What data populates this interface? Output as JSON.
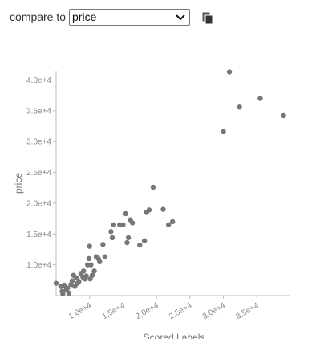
{
  "toolbar": {
    "compare_label": "compare to",
    "compare_value": "price",
    "copy_icon": "copy-icon"
  },
  "chart_data": {
    "type": "scatter",
    "title": "",
    "xlabel": "Scored Labels",
    "ylabel": "price",
    "xlim": [
      5000,
      40000
    ],
    "ylim": [
      5000,
      41500
    ],
    "x_ticks": [
      "1.0e+4",
      "1.5e+4",
      "2.0e+4",
      "2.5e+4",
      "3.0e+4",
      "3.5e+4"
    ],
    "x_tick_values": [
      10000,
      15000,
      20000,
      25000,
      30000,
      35000
    ],
    "y_ticks": [
      "1.0e+4",
      "1.5e+4",
      "2.0e+4",
      "2.5e+4",
      "3.0e+4",
      "3.5e+4",
      "4.0e+4"
    ],
    "y_tick_values": [
      10000,
      15000,
      20000,
      25000,
      30000,
      35000,
      40000
    ],
    "point_color": "#777777",
    "grid": false,
    "points": [
      [
        5000,
        7000
      ],
      [
        5700,
        6500
      ],
      [
        5900,
        5700
      ],
      [
        6000,
        5300
      ],
      [
        6200,
        6700
      ],
      [
        6500,
        5900
      ],
      [
        6700,
        6200
      ],
      [
        6900,
        5400
      ],
      [
        7200,
        6800
      ],
      [
        7400,
        7400
      ],
      [
        7600,
        8300
      ],
      [
        7800,
        6500
      ],
      [
        8000,
        7900
      ],
      [
        8200,
        7000
      ],
      [
        8400,
        7300
      ],
      [
        8700,
        8600
      ],
      [
        9000,
        8000
      ],
      [
        9100,
        9000
      ],
      [
        9300,
        7700
      ],
      [
        9500,
        8200
      ],
      [
        9700,
        10000
      ],
      [
        9900,
        11000
      ],
      [
        10000,
        13000
      ],
      [
        10100,
        7700
      ],
      [
        10200,
        10000
      ],
      [
        10400,
        8300
      ],
      [
        10700,
        9000
      ],
      [
        11000,
        11300
      ],
      [
        11300,
        11000
      ],
      [
        11500,
        10500
      ],
      [
        12000,
        13300
      ],
      [
        12300,
        11300
      ],
      [
        13200,
        15400
      ],
      [
        13400,
        14400
      ],
      [
        13600,
        16500
      ],
      [
        14500,
        16500
      ],
      [
        15000,
        16500
      ],
      [
        15400,
        18300
      ],
      [
        15600,
        13600
      ],
      [
        15800,
        14400
      ],
      [
        16100,
        17300
      ],
      [
        16400,
        16800
      ],
      [
        17500,
        13200
      ],
      [
        18200,
        13900
      ],
      [
        18500,
        18500
      ],
      [
        18900,
        18900
      ],
      [
        19500,
        22600
      ],
      [
        21000,
        19000
      ],
      [
        21800,
        16500
      ],
      [
        22400,
        17000
      ],
      [
        30000,
        31600
      ],
      [
        30900,
        41300
      ],
      [
        32400,
        35600
      ],
      [
        35500,
        37000
      ],
      [
        39000,
        34200
      ]
    ]
  }
}
